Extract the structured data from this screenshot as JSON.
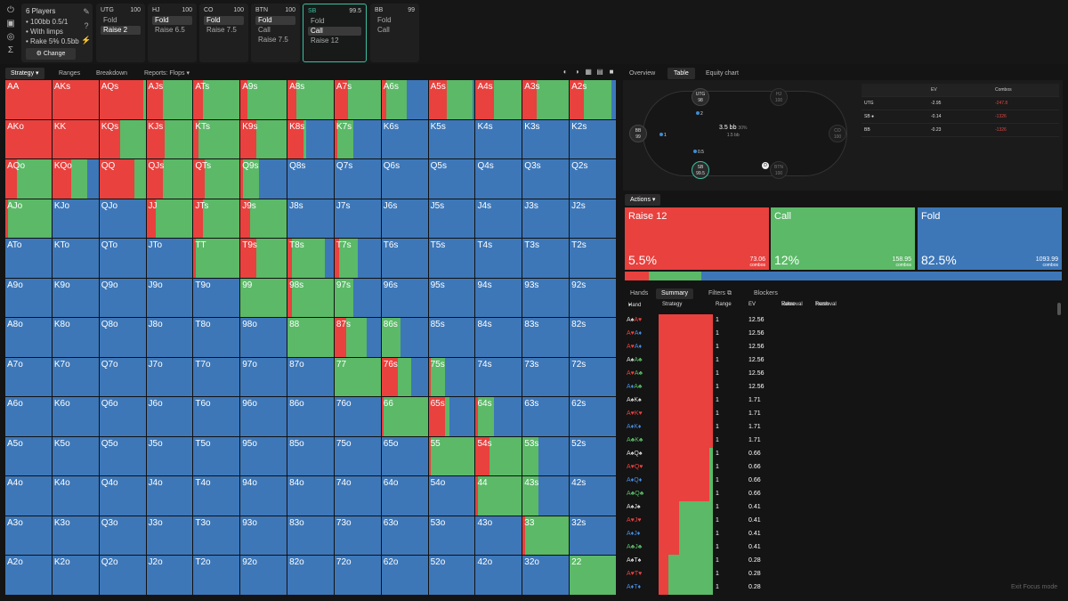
{
  "config": {
    "players": "6 Players",
    "stakes": "100bb 0.5/1",
    "limps": "With limps",
    "rake": "Rake 5% 0.5bb",
    "change_label": "Change",
    "icons": [
      "power-icon",
      "save-icon",
      "controller-icon",
      "sigma-icon"
    ]
  },
  "mid_icons": [
    "pencil-icon",
    "help-icon",
    "bolt-icon"
  ],
  "seats": [
    {
      "pos": "UTG",
      "stack": "100",
      "actions": [
        "Fold",
        "Raise 2"
      ],
      "selected": 1
    },
    {
      "pos": "HJ",
      "stack": "100",
      "actions": [
        "Fold",
        "Raise 6.5"
      ],
      "selected": 0
    },
    {
      "pos": "CO",
      "stack": "100",
      "actions": [
        "Fold",
        "Raise 7.5"
      ],
      "selected": 0
    },
    {
      "pos": "BTN",
      "stack": "100",
      "actions": [
        "Fold",
        "Call",
        "Raise 7.5"
      ],
      "selected": 0
    },
    {
      "pos": "SB",
      "stack": "99.5",
      "actions": [
        "Fold",
        "Call",
        "Raise 12"
      ],
      "selected": 1
    },
    {
      "pos": "BB",
      "stack": "99",
      "actions": [
        "Fold",
        "Call"
      ],
      "selected": -1
    }
  ],
  "left_tabs": {
    "strategy": "Strategy",
    "ranges": "Ranges",
    "breakdown": "Breakdown",
    "reports": "Reports: Flops"
  },
  "colors": {
    "raise": "#e8413e",
    "call": "#5bb967",
    "fold": "#3d77b8",
    "accent": "#3dbfa0"
  },
  "grid": [
    [
      "AA",
      "AKs",
      "AQs",
      "AJs",
      "ATs",
      "A9s",
      "A8s",
      "A7s",
      "A6s",
      "A5s",
      "A4s",
      "A3s",
      "A2s"
    ],
    [
      "AKo",
      "KK",
      "KQs",
      "KJs",
      "KTs",
      "K9s",
      "K8s",
      "K7s",
      "K6s",
      "K5s",
      "K4s",
      "K3s",
      "K2s"
    ],
    [
      "AQo",
      "KQo",
      "QQ",
      "QJs",
      "QTs",
      "Q9s",
      "Q8s",
      "Q7s",
      "Q6s",
      "Q5s",
      "Q4s",
      "Q3s",
      "Q2s"
    ],
    [
      "AJo",
      "KJo",
      "QJo",
      "JJ",
      "JTs",
      "J9s",
      "J8s",
      "J7s",
      "J6s",
      "J5s",
      "J4s",
      "J3s",
      "J2s"
    ],
    [
      "ATo",
      "KTo",
      "QTo",
      "JTo",
      "TT",
      "T9s",
      "T8s",
      "T7s",
      "T6s",
      "T5s",
      "T4s",
      "T3s",
      "T2s"
    ],
    [
      "A9o",
      "K9o",
      "Q9o",
      "J9o",
      "T9o",
      "99",
      "98s",
      "97s",
      "96s",
      "95s",
      "94s",
      "93s",
      "92s"
    ],
    [
      "A8o",
      "K8o",
      "Q8o",
      "J8o",
      "T8o",
      "98o",
      "88",
      "87s",
      "86s",
      "85s",
      "84s",
      "83s",
      "82s"
    ],
    [
      "A7o",
      "K7o",
      "Q7o",
      "J7o",
      "T7o",
      "97o",
      "87o",
      "77",
      "76s",
      "75s",
      "74s",
      "73s",
      "72s"
    ],
    [
      "A6o",
      "K6o",
      "Q6o",
      "J6o",
      "T6o",
      "96o",
      "86o",
      "76o",
      "66",
      "65s",
      "64s",
      "63s",
      "62s"
    ],
    [
      "A5o",
      "K5o",
      "Q5o",
      "J5o",
      "T5o",
      "95o",
      "85o",
      "75o",
      "65o",
      "55",
      "54s",
      "53s",
      "52s"
    ],
    [
      "A4o",
      "K4o",
      "Q4o",
      "J4o",
      "T4o",
      "94o",
      "84o",
      "74o",
      "64o",
      "54o",
      "44",
      "43s",
      "42s"
    ],
    [
      "A3o",
      "K3o",
      "Q3o",
      "J3o",
      "T3o",
      "93o",
      "83o",
      "73o",
      "63o",
      "53o",
      "43o",
      "33",
      "32s"
    ],
    [
      "A2o",
      "K2o",
      "Q2o",
      "J2o",
      "T2o",
      "92o",
      "82o",
      "72o",
      "62o",
      "52o",
      "42o",
      "32o",
      "22"
    ]
  ],
  "freq": {
    "AA": [
      1,
      0,
      0
    ],
    "AKs": [
      1,
      0,
      0
    ],
    "AQs": [
      0.95,
      0.05,
      0
    ],
    "AJs": [
      0.35,
      0.65,
      0
    ],
    "ATs": [
      0.2,
      0.8,
      0
    ],
    "A9s": [
      0.15,
      0.85,
      0
    ],
    "A8s": [
      0.2,
      0.8,
      0
    ],
    "A7s": [
      0.3,
      0.7,
      0
    ],
    "A6s": [
      0.1,
      0.45,
      0.45
    ],
    "A5s": [
      0.4,
      0.55,
      0.05
    ],
    "A4s": [
      0.4,
      0.6,
      0
    ],
    "A3s": [
      0.3,
      0.7,
      0
    ],
    "A2s": [
      0.3,
      0.6,
      0.1
    ],
    "AKo": [
      1,
      0,
      0
    ],
    "KK": [
      1,
      0,
      0
    ],
    "KQs": [
      0.45,
      0.55,
      0
    ],
    "KJs": [
      0.4,
      0.6,
      0
    ],
    "KTs": [
      0.1,
      0.9,
      0
    ],
    "K9s": [
      0.35,
      0.65,
      0
    ],
    "K8s": [
      0.35,
      0.05,
      0.6
    ],
    "K7s": [
      0.05,
      0.35,
      0.6
    ],
    "AQo": [
      0.25,
      0.75,
      0
    ],
    "KQo": [
      0.4,
      0.35,
      0.25
    ],
    "QQ": [
      0.75,
      0.25,
      0
    ],
    "QJs": [
      0.35,
      0.65,
      0
    ],
    "QTs": [
      0.25,
      0.75,
      0
    ],
    "Q9s": [
      0.05,
      0.35,
      0.6
    ],
    "AJo": [
      0.05,
      0.95,
      0
    ],
    "JJ": [
      0.2,
      0.8,
      0
    ],
    "JTs": [
      0.2,
      0.8,
      0
    ],
    "J9s": [
      0.2,
      0.8,
      0
    ],
    "TT": [
      0.05,
      0.95,
      0
    ],
    "T9s": [
      0.35,
      0.65,
      0
    ],
    "T8s": [
      0.1,
      0.7,
      0.2
    ],
    "T7s": [
      0.1,
      0.4,
      0.5
    ],
    "99": [
      0,
      1,
      0
    ],
    "98s": [
      0.1,
      0.9,
      0
    ],
    "97s": [
      0,
      0.4,
      0.6
    ],
    "88": [
      0,
      1,
      0
    ],
    "87s": [
      0.25,
      0.45,
      0.3
    ],
    "86s": [
      0,
      0.4,
      0.6
    ],
    "77": [
      0,
      1,
      0
    ],
    "76s": [
      0.35,
      0.3,
      0.35
    ],
    "75s": [
      0.05,
      0.3,
      0.65
    ],
    "66": [
      0.05,
      0.95,
      0
    ],
    "65s": [
      0.35,
      0.1,
      0.55
    ],
    "64s": [
      0.05,
      0.35,
      0.6
    ],
    "55": [
      0.05,
      0.95,
      0
    ],
    "54s": [
      0.3,
      0.7,
      0
    ],
    "53s": [
      0,
      0.35,
      0.65
    ],
    "44": [
      0.05,
      0.95,
      0
    ],
    "43s": [
      0,
      0.35,
      0.65
    ],
    "33": [
      0.05,
      0.95,
      0
    ],
    "22": [
      0,
      1,
      0
    ]
  },
  "right_tabs": {
    "overview": "Overview",
    "table": "Table",
    "equity": "Equity chart"
  },
  "table": {
    "players": [
      {
        "name": "UTG",
        "stack": "98",
        "state": "normal"
      },
      {
        "name": "HJ",
        "stack": "100",
        "state": "dim"
      },
      {
        "name": "CO",
        "stack": "100",
        "state": "dim"
      },
      {
        "name": "BTN",
        "stack": "100",
        "state": "dim"
      },
      {
        "name": "SB",
        "stack": "99.5",
        "state": "active"
      },
      {
        "name": "BB",
        "stack": "99",
        "state": "normal"
      }
    ],
    "chips": {
      "utg": "2",
      "bb": "1",
      "sb": "0.5"
    },
    "pot": "3.5 bb",
    "pot_pct": "30%",
    "pot_sub": "1.5 bb",
    "dealer": "D",
    "ev_header": {
      "player": "",
      "ev": "EV",
      "combos": "Combos"
    },
    "ev_rows": [
      {
        "player": "UTG",
        "ev": "-2.95",
        "combos": "-247.8"
      },
      {
        "player": "SB ●",
        "ev": "-0.14",
        "combos": "-1326"
      },
      {
        "player": "BB",
        "ev": "-0.23",
        "combos": "-1326"
      }
    ]
  },
  "actions_label": "Actions",
  "actions": [
    {
      "name": "Raise 12",
      "pct": "5.5%",
      "combos": "73.06",
      "combos_label": "combos",
      "freq": 0.055
    },
    {
      "name": "Call",
      "pct": "12%",
      "combos": "158.95",
      "combos_label": "combos",
      "freq": 0.12
    },
    {
      "name": "Fold",
      "pct": "82.5%",
      "combos": "1093.99",
      "combos_label": "combos",
      "freq": 0.825
    }
  ],
  "bottom_tabs": {
    "hands": "Hands",
    "summary": "Summary",
    "filters": "Filters",
    "blockers": "Blockers"
  },
  "hand_cols": {
    "hand": "Hand",
    "strategy": "Strategy",
    "range": "Range",
    "ev": "EV",
    "vr1": "Value",
    "vr2": "Removal",
    "tr1": "Trash",
    "tr2": "Removal"
  },
  "hands": [
    {
      "c1": "A♠",
      "c2": "A♥",
      "col1": "#ddd",
      "col2": "#e8413e",
      "range": "1",
      "ev": "12.56",
      "r": 1,
      "c": 0
    },
    {
      "c1": "A♥",
      "c2": "A♦",
      "col1": "#e8413e",
      "col2": "#4a8de0",
      "range": "1",
      "ev": "12.56",
      "r": 1,
      "c": 0
    },
    {
      "c1": "A♥",
      "c2": "A♦",
      "col1": "#e8413e",
      "col2": "#4a8de0",
      "range": "1",
      "ev": "12.56",
      "r": 1,
      "c": 0
    },
    {
      "c1": "A♠",
      "c2": "A♣",
      "col1": "#ddd",
      "col2": "#5bb967",
      "range": "1",
      "ev": "12.56",
      "r": 1,
      "c": 0
    },
    {
      "c1": "A♥",
      "c2": "A♣",
      "col1": "#e8413e",
      "col2": "#5bb967",
      "range": "1",
      "ev": "12.56",
      "r": 1,
      "c": 0
    },
    {
      "c1": "A♦",
      "c2": "A♣",
      "col1": "#4a8de0",
      "col2": "#5bb967",
      "range": "1",
      "ev": "12.56",
      "r": 1,
      "c": 0
    },
    {
      "c1": "A♠",
      "c2": "K♠",
      "col1": "#ddd",
      "col2": "#ddd",
      "range": "1",
      "ev": "1.71",
      "r": 1,
      "c": 0
    },
    {
      "c1": "A♥",
      "c2": "K♥",
      "col1": "#e8413e",
      "col2": "#e8413e",
      "range": "1",
      "ev": "1.71",
      "r": 1,
      "c": 0
    },
    {
      "c1": "A♦",
      "c2": "K♦",
      "col1": "#4a8de0",
      "col2": "#4a8de0",
      "range": "1",
      "ev": "1.71",
      "r": 1,
      "c": 0
    },
    {
      "c1": "A♣",
      "c2": "K♣",
      "col1": "#5bb967",
      "col2": "#5bb967",
      "range": "1",
      "ev": "1.71",
      "r": 1,
      "c": 0
    },
    {
      "c1": "A♠",
      "c2": "Q♠",
      "col1": "#ddd",
      "col2": "#ddd",
      "range": "1",
      "ev": "0.66",
      "r": 0.93,
      "c": 0.07
    },
    {
      "c1": "A♥",
      "c2": "Q♥",
      "col1": "#e8413e",
      "col2": "#e8413e",
      "range": "1",
      "ev": "0.66",
      "r": 0.93,
      "c": 0.07
    },
    {
      "c1": "A♦",
      "c2": "Q♦",
      "col1": "#4a8de0",
      "col2": "#4a8de0",
      "range": "1",
      "ev": "0.66",
      "r": 0.93,
      "c": 0.07
    },
    {
      "c1": "A♣",
      "c2": "Q♣",
      "col1": "#5bb967",
      "col2": "#5bb967",
      "range": "1",
      "ev": "0.66",
      "r": 0.93,
      "c": 0.07
    },
    {
      "c1": "A♠",
      "c2": "J♠",
      "col1": "#ddd",
      "col2": "#ddd",
      "range": "1",
      "ev": "0.41",
      "r": 0.38,
      "c": 0.62
    },
    {
      "c1": "A♥",
      "c2": "J♥",
      "col1": "#e8413e",
      "col2": "#e8413e",
      "range": "1",
      "ev": "0.41",
      "r": 0.38,
      "c": 0.62
    },
    {
      "c1": "A♦",
      "c2": "J♦",
      "col1": "#4a8de0",
      "col2": "#4a8de0",
      "range": "1",
      "ev": "0.41",
      "r": 0.38,
      "c": 0.62
    },
    {
      "c1": "A♣",
      "c2": "J♣",
      "col1": "#5bb967",
      "col2": "#5bb967",
      "range": "1",
      "ev": "0.41",
      "r": 0.38,
      "c": 0.62
    },
    {
      "c1": "A♠",
      "c2": "T♠",
      "col1": "#ddd",
      "col2": "#ddd",
      "range": "1",
      "ev": "0.28",
      "r": 0.18,
      "c": 0.82
    },
    {
      "c1": "A♥",
      "c2": "T♥",
      "col1": "#e8413e",
      "col2": "#e8413e",
      "range": "1",
      "ev": "0.28",
      "r": 0.18,
      "c": 0.82
    },
    {
      "c1": "A♦",
      "c2": "T♦",
      "col1": "#4a8de0",
      "col2": "#4a8de0",
      "range": "1",
      "ev": "0.28",
      "r": 0.18,
      "c": 0.82
    }
  ],
  "exit_focus": "Exit Focus mode"
}
